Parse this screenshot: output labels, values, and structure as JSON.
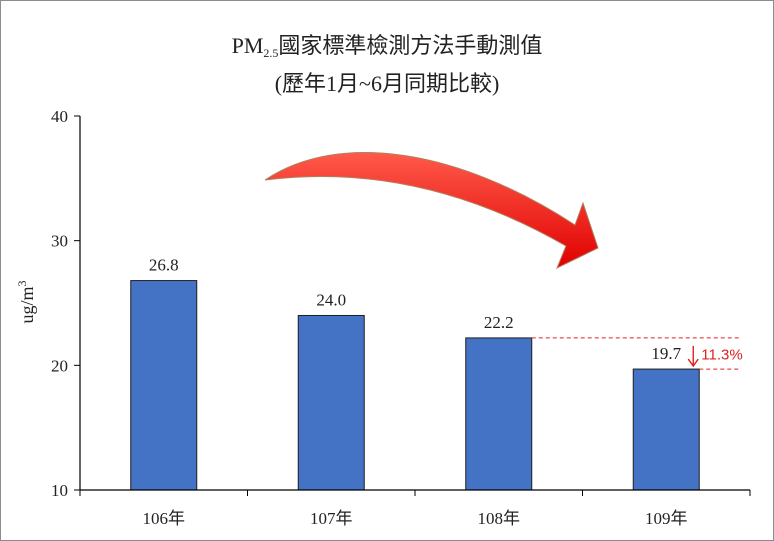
{
  "chart_data": {
    "type": "bar",
    "title_main": "PM",
    "title_sub": "2.5",
    "title_rest": "國家標準檢測方法手動測值",
    "subtitle": "(歷年1月~6月同期比較)",
    "ylabel_base": "ug/m",
    "ylabel_sup": "3",
    "categories": [
      "106年",
      "107年",
      "108年",
      "109年"
    ],
    "values": [
      26.8,
      24.0,
      22.2,
      19.7
    ],
    "value_labels": [
      "26.8",
      "24.0",
      "22.2",
      "19.7"
    ],
    "ylim": [
      10,
      40
    ],
    "yticks": [
      10,
      20,
      30,
      40
    ],
    "grid": false,
    "legend": "none",
    "bar_color": "#4472c4",
    "annotation": {
      "text": "11.3%",
      "from_index": 2,
      "to_index": 3,
      "color": "#e02020"
    },
    "arrow_color": "#ff0000"
  }
}
